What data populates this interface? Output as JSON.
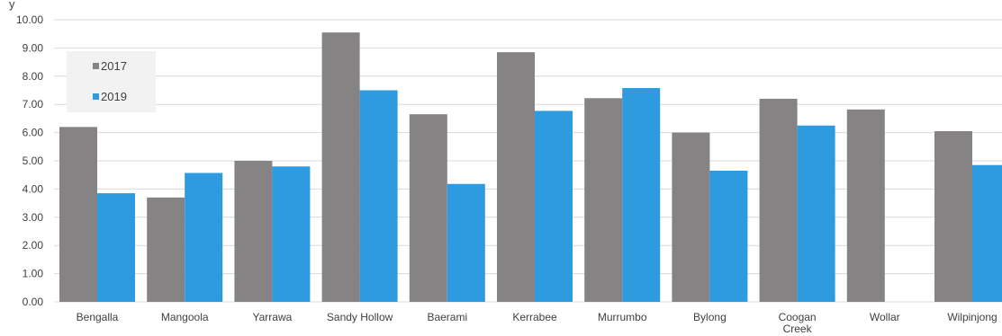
{
  "chart_data": {
    "type": "bar",
    "title_fragment": "y",
    "categories": [
      "Bengalla",
      "Mangoola",
      "Yarrawa",
      "Sandy Hollow",
      "Baerami",
      "Kerrabee",
      "Murrumbo",
      "Bylong",
      "Coogan Creek",
      "Wollar",
      "Wilpinjong"
    ],
    "series": [
      {
        "name": "2017",
        "color": "#858384",
        "values": [
          6.2,
          3.7,
          5.0,
          9.55,
          6.65,
          8.85,
          7.22,
          6.0,
          7.2,
          6.82,
          6.05
        ]
      },
      {
        "name": "2019",
        "color": "#2e9ae0",
        "values": [
          3.85,
          4.57,
          4.8,
          7.5,
          4.18,
          6.77,
          7.58,
          4.65,
          6.25,
          null,
          4.85
        ]
      }
    ],
    "y_ticks": [
      "0.00",
      "1.00",
      "2.00",
      "3.00",
      "4.00",
      "5.00",
      "6.00",
      "7.00",
      "8.00",
      "9.00",
      "10.00"
    ],
    "ylim": [
      0,
      10
    ],
    "grid": true,
    "legend_position": "top-left",
    "gridline_color": "#d9d9d9",
    "legend_box_color": "#f2f2f2"
  }
}
